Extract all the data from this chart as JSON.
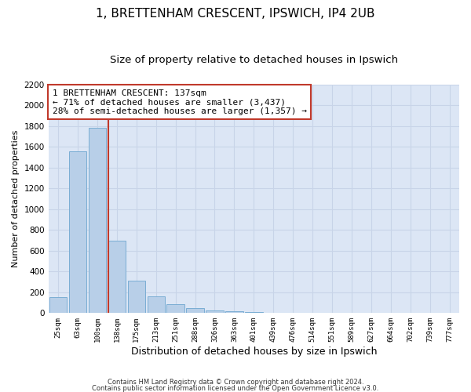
{
  "title1": "1, BRETTENHAM CRESCENT, IPSWICH, IP4 2UB",
  "title2": "Size of property relative to detached houses in Ipswich",
  "xlabel": "Distribution of detached houses by size in Ipswich",
  "ylabel": "Number of detached properties",
  "footer1": "Contains HM Land Registry data © Crown copyright and database right 2024.",
  "footer2": "Contains public sector information licensed under the Open Government Licence v3.0.",
  "categories": [
    "25sqm",
    "63sqm",
    "100sqm",
    "138sqm",
    "175sqm",
    "213sqm",
    "251sqm",
    "288sqm",
    "326sqm",
    "363sqm",
    "401sqm",
    "439sqm",
    "476sqm",
    "514sqm",
    "551sqm",
    "589sqm",
    "627sqm",
    "664sqm",
    "702sqm",
    "739sqm",
    "777sqm"
  ],
  "values": [
    155,
    1560,
    1780,
    700,
    315,
    160,
    85,
    45,
    25,
    18,
    10,
    5,
    5,
    0,
    0,
    0,
    0,
    0,
    0,
    0,
    0
  ],
  "bar_color": "#b8cfe8",
  "bar_edge_color": "#7aadd4",
  "highlight_index": 3,
  "highlight_color": "#c0392b",
  "annotation_line1": "1 BRETTENHAM CRESCENT: 137sqm",
  "annotation_line2": "← 71% of detached houses are smaller (3,437)",
  "annotation_line3": "28% of semi-detached houses are larger (1,357) →",
  "annotation_box_color": "#c0392b",
  "ylim": [
    0,
    2200
  ],
  "yticks": [
    0,
    200,
    400,
    600,
    800,
    1000,
    1200,
    1400,
    1600,
    1800,
    2000,
    2200
  ],
  "plot_bg_color": "#dce6f5",
  "fig_bg_color": "#ffffff",
  "grid_color": "#c8d4e8",
  "title1_fontsize": 11,
  "title2_fontsize": 9.5,
  "xlabel_fontsize": 9,
  "ylabel_fontsize": 8,
  "annotation_fontsize": 8
}
